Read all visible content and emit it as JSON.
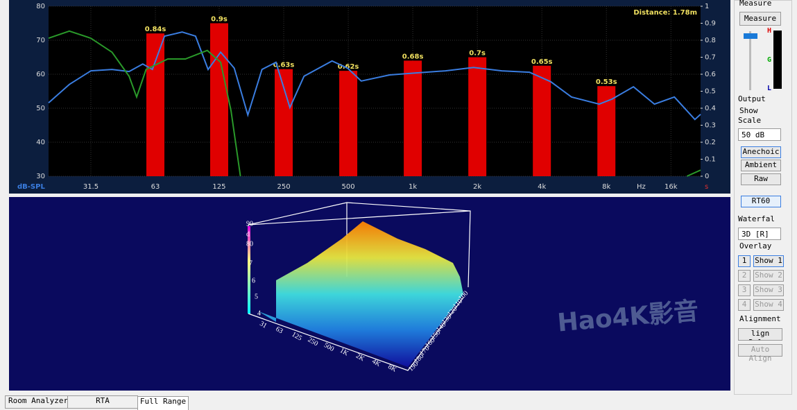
{
  "chart_data": {
    "type": "bar",
    "annotation": "Distance: 1.78m",
    "ylabel": "dB-SPL",
    "x_unit": "Hz",
    "y2_unit": "s",
    "log_x": true,
    "grid": true,
    "xlim": [
      20,
      22000
    ],
    "xticks": [
      31.5,
      63,
      125,
      250,
      500,
      {
        "value": 1000,
        "label": "1k"
      },
      {
        "value": 2000,
        "label": "2k"
      },
      {
        "value": 4000,
        "label": "4k"
      },
      {
        "value": 8000,
        "label": "8k"
      },
      {
        "value": 16000,
        "label": "16k"
      }
    ],
    "ylim": [
      30,
      80
    ],
    "yticks": [
      30,
      40,
      50,
      60,
      70,
      80
    ],
    "y2lim": [
      0,
      1
    ],
    "y2ticks": [
      0,
      0.1,
      0.2,
      0.3,
      0.4,
      0.5,
      0.6,
      0.7,
      0.8,
      0.9,
      1
    ],
    "series": [
      {
        "type": "bar",
        "axis": "y2",
        "color": "#e00000",
        "x": [
          63,
          125,
          250,
          500,
          1000,
          2000,
          4000,
          8000
        ],
        "values": [
          0.84,
          0.9,
          0.63,
          0.62,
          0.68,
          0.7,
          0.65,
          0.53
        ],
        "value_labels": [
          "0.84s",
          "0.9s",
          "0.63s",
          "0.62s",
          "0.68s",
          "0.7s",
          "0.65s",
          "0.53s"
        ]
      },
      {
        "type": "line",
        "color": "#3a7de0",
        "x": [
          20,
          25,
          31.5,
          39.5,
          47.5,
          55,
          61,
          69.5,
          84,
          97,
          111,
          127,
          147,
          170,
          198,
          230,
          267,
          311,
          420,
          496,
          575,
          780,
          1050,
          1420,
          1920,
          2600,
          3500,
          4400,
          5500,
          7400,
          8500,
          10700,
          13400,
          16600,
          20700,
          22000
        ],
        "values": [
          51.6,
          57,
          61,
          61.4,
          60.8,
          63,
          61.4,
          71.2,
          72.4,
          71.2,
          61.4,
          66.5,
          61.8,
          48,
          61.4,
          63.5,
          50.2,
          59.4,
          63.9,
          61.8,
          58,
          59.8,
          60.4,
          61,
          62,
          61,
          60.6,
          57.8,
          53.3,
          51.2,
          52.7,
          56.3,
          51.2,
          53.3,
          46.7,
          48.2
        ]
      },
      {
        "type": "line",
        "color": "#2a9a2a",
        "x": [
          20,
          25,
          31.5,
          39.5,
          47.5,
          51.5,
          57,
          72,
          87,
          110,
          127,
          142,
          157,
          null,
          19000,
          22000
        ],
        "values": [
          70.6,
          72.7,
          70.6,
          66.5,
          59.4,
          53.3,
          61.4,
          64.5,
          64.5,
          67,
          63.5,
          49.2,
          30,
          null,
          30,
          31.8
        ]
      }
    ]
  },
  "waterfall": {
    "z_labels": [
      "90",
      "d",
      "80",
      "7",
      "6",
      "5",
      "4"
    ],
    "x_labels": [
      "31",
      "63",
      "125",
      "250",
      "500",
      "1K",
      "2K",
      "4K",
      "8K"
    ],
    "depth_labels": [
      "190",
      "180",
      "170",
      "160",
      "150",
      "140",
      "130",
      "120",
      "110",
      "100"
    ],
    "watermark": "Hao4K影音"
  },
  "ui": {
    "measure": {
      "title": "Measure",
      "button": "Measure",
      "meter": [
        "H",
        "G",
        "L"
      ],
      "output": "Output"
    },
    "show": {
      "title": "Show",
      "scale_label": "Scale",
      "scale_value": "50 dB",
      "buttons": [
        "Anechoic",
        "Ambient",
        "Raw"
      ],
      "rt60": "RT60",
      "waterfall_label": "Waterfal",
      "waterfall_value": "3D [R]"
    },
    "overlay": {
      "title": "Overlay",
      "items": [
        {
          "index": "1",
          "button": "Show 1"
        },
        {
          "index": "2",
          "button": "Show 2"
        },
        {
          "index": "3",
          "button": "Show 3"
        },
        {
          "index": "4",
          "button": "Show 4"
        }
      ]
    },
    "alignment": {
      "title": "Alignment",
      "buttons": [
        "lign Delay",
        "Auto Align"
      ]
    },
    "tabs": [
      "Room Analyzer",
      "RTA",
      "Full Range"
    ]
  }
}
